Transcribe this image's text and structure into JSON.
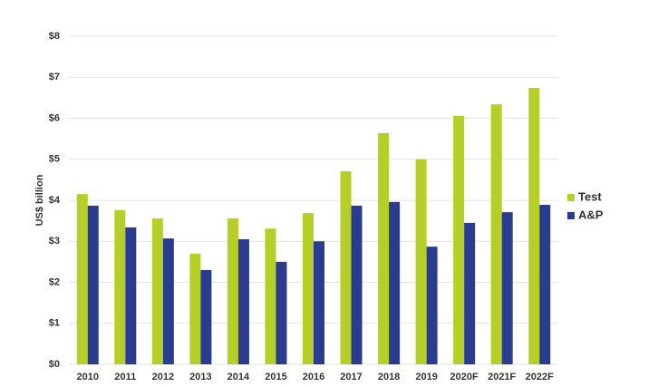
{
  "chart_data": {
    "type": "bar",
    "y_label": "US$ billion",
    "categories": [
      "2010",
      "2011",
      "2012",
      "2013",
      "2014",
      "2015",
      "2016",
      "2017",
      "2018",
      "2019",
      "2020F",
      "2021F",
      "2022F"
    ],
    "series": [
      {
        "name": "Test",
        "color": "#b5cf27",
        "values": [
          4.15,
          3.76,
          3.56,
          2.7,
          3.56,
          3.31,
          3.69,
          4.71,
          5.64,
          5.0,
          6.06,
          6.34,
          6.74
        ]
      },
      {
        "name": "A&P",
        "color": "#2a3c8f",
        "values": [
          3.87,
          3.34,
          3.07,
          2.3,
          3.05,
          2.5,
          3.0,
          3.87,
          3.96,
          2.87,
          3.45,
          3.71,
          3.89
        ]
      }
    ],
    "ylim": [
      0,
      8
    ],
    "yticks": [
      {
        "value": 0,
        "label": "$0"
      },
      {
        "value": 1,
        "label": "$1"
      },
      {
        "value": 2,
        "label": "$2"
      },
      {
        "value": 3,
        "label": "$3"
      },
      {
        "value": 4,
        "label": "$4"
      },
      {
        "value": 5,
        "label": "$5"
      },
      {
        "value": 6,
        "label": "$6"
      },
      {
        "value": 7,
        "label": "$7"
      },
      {
        "value": 8,
        "label": "$8"
      }
    ],
    "grid": true,
    "legend_position": "right"
  }
}
